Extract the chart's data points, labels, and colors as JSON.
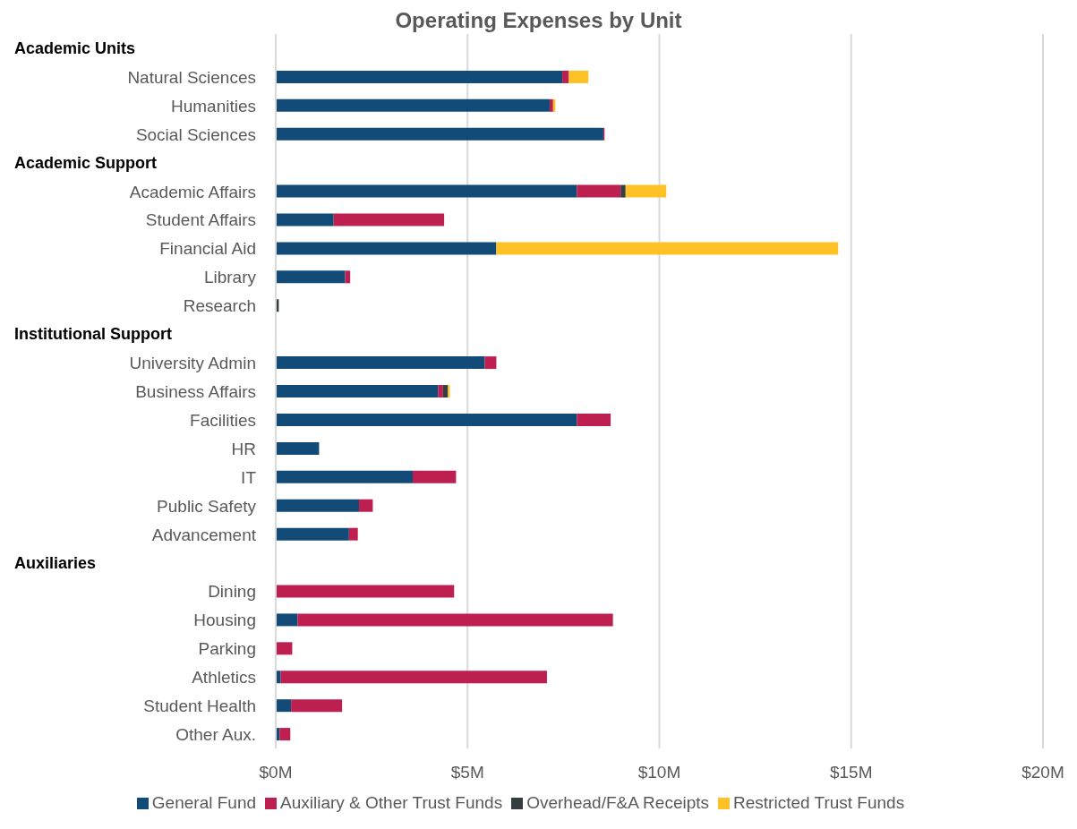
{
  "chart_data": {
    "type": "bar",
    "orientation": "horizontal",
    "stacked": true,
    "title": "Operating Expenses by Unit",
    "annotations": [
      "Academic Units",
      "Academic Support",
      "Institutional Support",
      "Auxiliaries"
    ],
    "categories": [
      null,
      "Natural Sciences",
      "Humanities",
      "Social Sciences",
      null,
      "Academic Affairs",
      "Student Affairs",
      "Financial Aid",
      "Library",
      "Research",
      null,
      "University Admin",
      "Business Affairs",
      "Facilities",
      "HR",
      "IT",
      "Public Safety",
      "Advancement",
      null,
      "Dining",
      "Housing",
      "Parking",
      "Athletics",
      "Student Health",
      "Other Aux."
    ],
    "series": [
      {
        "name": "General Fund",
        "color": "#134b78",
        "values": [
          null,
          7.47,
          7.14,
          8.54,
          null,
          7.85,
          1.51,
          5.75,
          1.81,
          null,
          null,
          5.45,
          4.23,
          7.85,
          1.13,
          3.57,
          2.17,
          1.91,
          null,
          null,
          0.57,
          null,
          0.13,
          0.4,
          0.1
        ]
      },
      {
        "name": "Auxiliary & Other Trust Funds",
        "color": "#bc1f50",
        "values": [
          null,
          0.17,
          0.09,
          0.03,
          null,
          1.14,
          2.88,
          null,
          0.13,
          null,
          null,
          0.3,
          0.13,
          0.88,
          null,
          1.13,
          0.36,
          0.23,
          null,
          4.65,
          8.22,
          0.43,
          6.94,
          1.33,
          0.28
        ]
      },
      {
        "name": "Overhead/F&A Receipts",
        "color": "#363d40",
        "values": [
          null,
          null,
          null,
          null,
          null,
          0.13,
          null,
          null,
          null,
          0.08,
          null,
          null,
          0.13,
          null,
          null,
          null,
          null,
          null,
          null,
          null,
          null,
          null,
          null,
          null,
          null
        ]
      },
      {
        "name": "Restricted Trust Funds",
        "color": "#fec226",
        "values": [
          null,
          0.51,
          0.06,
          null,
          null,
          1.06,
          null,
          8.91,
          null,
          null,
          null,
          null,
          0.05,
          null,
          null,
          null,
          null,
          null,
          null,
          null,
          null,
          null,
          null,
          null,
          null
        ]
      }
    ],
    "xlim": [
      0,
      20
    ],
    "xticks": [
      {
        "value": 0,
        "label": "$0M"
      },
      {
        "value": 5,
        "label": "$5M"
      },
      {
        "value": 10,
        "label": "$10M"
      },
      {
        "value": 15,
        "label": "$15M"
      },
      {
        "value": 20,
        "label": "$20M"
      }
    ],
    "grid": "x",
    "legend": "bottom"
  }
}
